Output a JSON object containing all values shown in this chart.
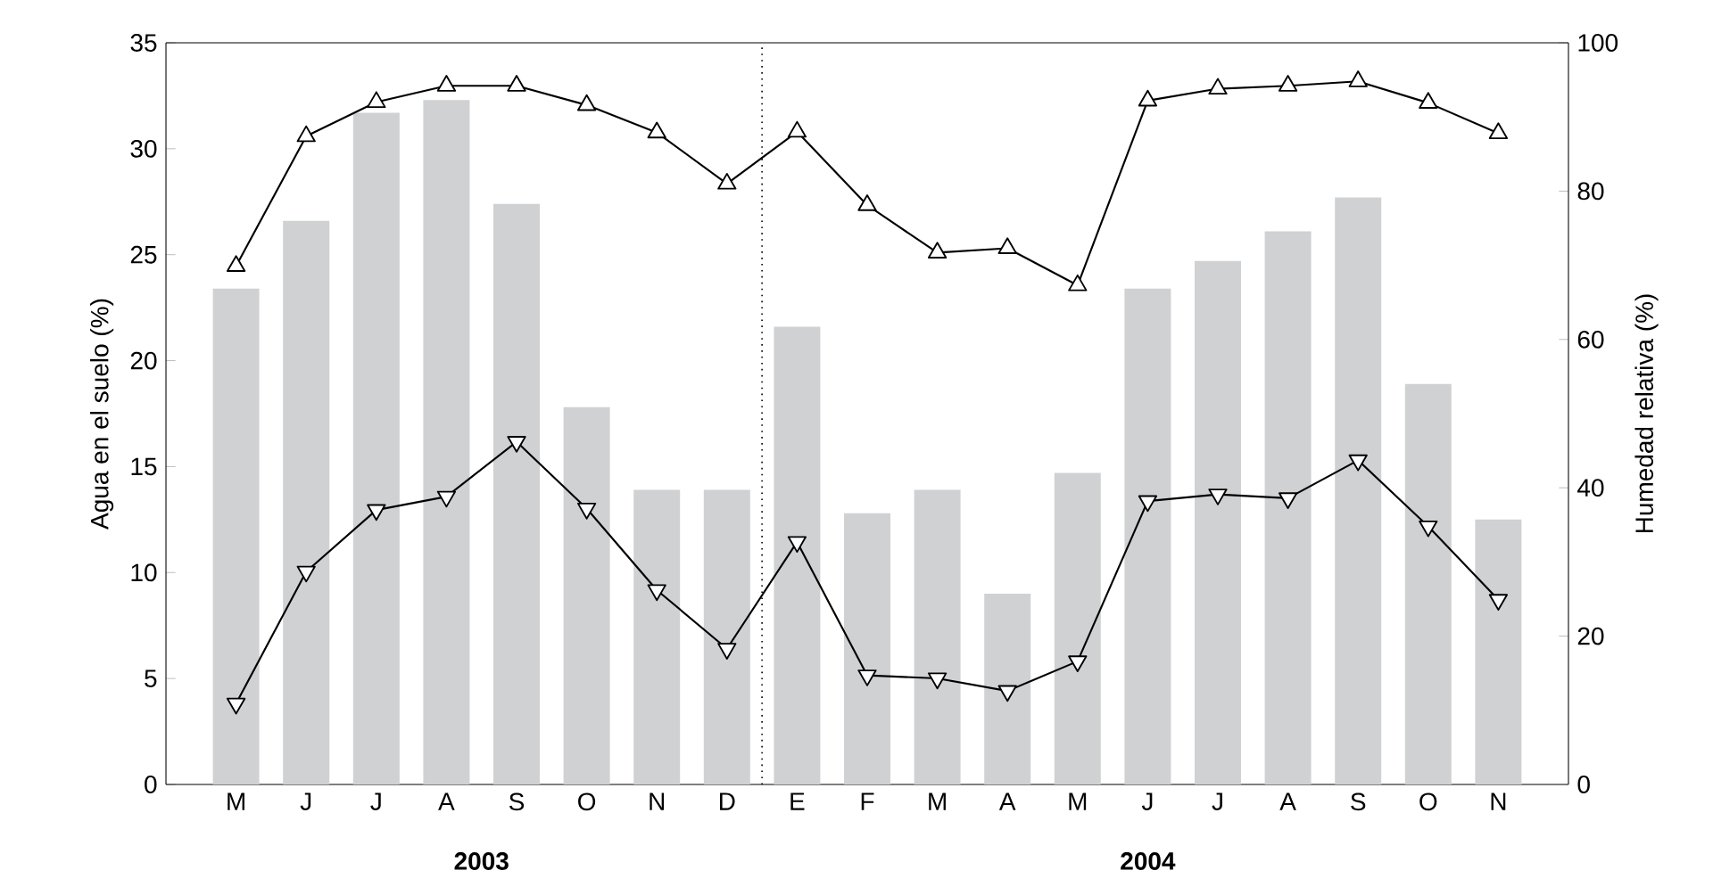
{
  "chart_data": {
    "type": "bar",
    "ylabel": "Agua en el suelo (%)",
    "y2label": "Humedad relativa (%)",
    "categories": [
      "M",
      "J",
      "J",
      "A",
      "S",
      "O",
      "N",
      "D",
      "E",
      "F",
      "M",
      "A",
      "M",
      "J",
      "J",
      "A",
      "S",
      "O",
      "N"
    ],
    "series": [
      {
        "color": "#d0d1d3",
        "values": [
          23.4,
          26.6,
          31.7,
          32.3,
          27.4,
          17.8,
          13.9,
          13.9,
          21.6,
          12.8,
          13.9,
          9.0,
          14.7,
          23.4,
          24.7,
          26.1,
          27.7,
          18.9,
          12.5
        ]
      },
      {
        "type": "line",
        "axis": "y2",
        "color": "#000000",
        "marker": "triangle",
        "values": [
          69.9,
          87.4,
          92.0,
          94.2,
          94.2,
          91.6,
          87.9,
          81.0,
          88.0,
          78.1,
          71.7,
          72.3,
          67.3,
          92.2,
          93.8,
          94.2,
          94.8,
          91.9,
          87.8
        ]
      },
      {
        "type": "line",
        "axis": "y2",
        "color": "#000000",
        "marker": "triangle",
        "values": [
          10.9,
          28.7,
          37.0,
          38.8,
          46.2,
          37.2,
          26.2,
          18.3,
          32.7,
          14.7,
          14.3,
          12.6,
          16.6,
          38.2,
          39.1,
          38.6,
          43.7,
          34.8,
          24.9
        ]
      }
    ],
    "ylim": [
      0,
      35
    ],
    "yticks": [
      0,
      5,
      10,
      15,
      20,
      25,
      30,
      35
    ],
    "y2lim": [
      0,
      100
    ],
    "y2ticks": [
      0,
      20,
      40,
      60,
      80,
      100
    ],
    "annotations": [
      "2003",
      "2004"
    ],
    "grid": false
  }
}
